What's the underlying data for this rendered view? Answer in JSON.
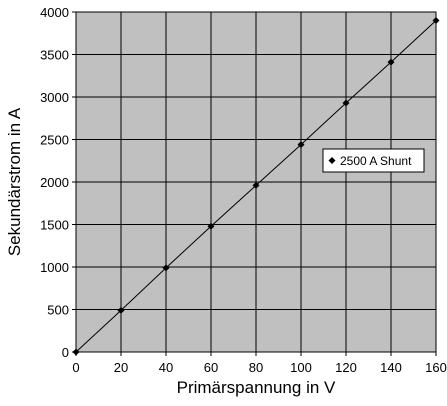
{
  "chart_data": {
    "type": "scatter",
    "title": "",
    "xlabel": "Primärspannung in V",
    "ylabel": "Sekundärstrom in A",
    "xlim": [
      0,
      160
    ],
    "ylim": [
      0,
      4000
    ],
    "xticks": [
      0,
      20,
      40,
      60,
      80,
      100,
      120,
      140,
      160
    ],
    "yticks": [
      0,
      500,
      1000,
      1500,
      2000,
      2500,
      3000,
      3500,
      4000
    ],
    "grid": true,
    "legend_position": "right",
    "plot_background": "#c0c0c0",
    "series": [
      {
        "name": "2500 A Shunt",
        "marker": "diamond",
        "line": true,
        "color": "#000000",
        "x": [
          0,
          20,
          40,
          60,
          80,
          100,
          120,
          140,
          160
        ],
        "y": [
          0,
          490,
          990,
          1480,
          1960,
          2440,
          2930,
          3410,
          3900
        ]
      }
    ]
  }
}
